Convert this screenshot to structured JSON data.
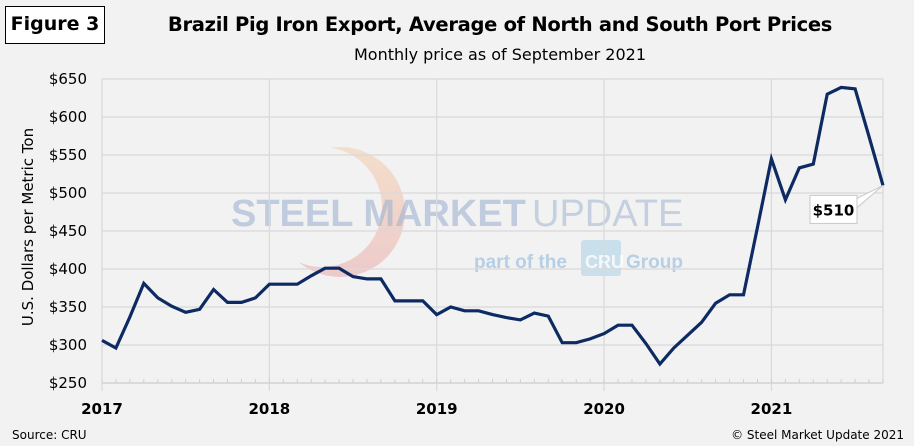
{
  "figure_label": "Figure 3",
  "source": "Source: CRU",
  "copyright": "© Steel Market Update 2021",
  "watermark": {
    "line1_bold": "STEEL MARKET",
    "line1_thin": "UPDATE",
    "line2_pre": "part of the",
    "line2_badge": "CRU",
    "line2_post": "Group"
  },
  "colors": {
    "line": "#0d2a63",
    "grid": "#d9d9d9",
    "background": "#f2f2f2"
  },
  "chart_data": {
    "type": "line",
    "title": "Brazil Pig Iron Export, Average of North and South Port Prices",
    "subtitle": "Monthly price as of September 2021",
    "xlabel": "",
    "ylabel": "U.S. Dollars per Metric Ton",
    "ylim": [
      250,
      650
    ],
    "yticks": [
      250,
      300,
      350,
      400,
      450,
      500,
      550,
      600,
      650
    ],
    "ytick_labels": [
      "$250",
      "$300",
      "$350",
      "$400",
      "$450",
      "$500",
      "$550",
      "$600",
      "$650"
    ],
    "xtick_labels": [
      "2017",
      "2018",
      "2019",
      "2020",
      "2021"
    ],
    "x_start": "2017-01",
    "x_end": "2021-09",
    "grid": true,
    "legend": "none",
    "annotation": {
      "label": "$510",
      "point": "2021-09"
    },
    "series": [
      {
        "name": "Brazil Pig Iron Export Price",
        "x": [
          "2017-01",
          "2017-02",
          "2017-03",
          "2017-04",
          "2017-05",
          "2017-06",
          "2017-07",
          "2017-08",
          "2017-09",
          "2017-10",
          "2017-11",
          "2017-12",
          "2018-01",
          "2018-02",
          "2018-03",
          "2018-04",
          "2018-05",
          "2018-06",
          "2018-07",
          "2018-08",
          "2018-09",
          "2018-10",
          "2018-11",
          "2018-12",
          "2019-01",
          "2019-02",
          "2019-03",
          "2019-04",
          "2019-05",
          "2019-06",
          "2019-07",
          "2019-08",
          "2019-09",
          "2019-10",
          "2019-11",
          "2019-12",
          "2020-01",
          "2020-02",
          "2020-03",
          "2020-04",
          "2020-05",
          "2020-06",
          "2020-07",
          "2020-08",
          "2020-09",
          "2020-10",
          "2020-11",
          "2020-12",
          "2021-01",
          "2021-02",
          "2021-03",
          "2021-04",
          "2021-05",
          "2021-06",
          "2021-07",
          "2021-08",
          "2021-09"
        ],
        "values": [
          306,
          296,
          337,
          381,
          362,
          351,
          343,
          347,
          373,
          356,
          356,
          362,
          380,
          380,
          380,
          391,
          401,
          401,
          390,
          387,
          387,
          358,
          358,
          358,
          340,
          350,
          345,
          345,
          340,
          336,
          333,
          342,
          338,
          303,
          303,
          308,
          315,
          326,
          326,
          302,
          275,
          296,
          313,
          330,
          355,
          366,
          366,
          455,
          545,
          491,
          533,
          538,
          630,
          639,
          637,
          574,
          510
        ]
      }
    ]
  }
}
